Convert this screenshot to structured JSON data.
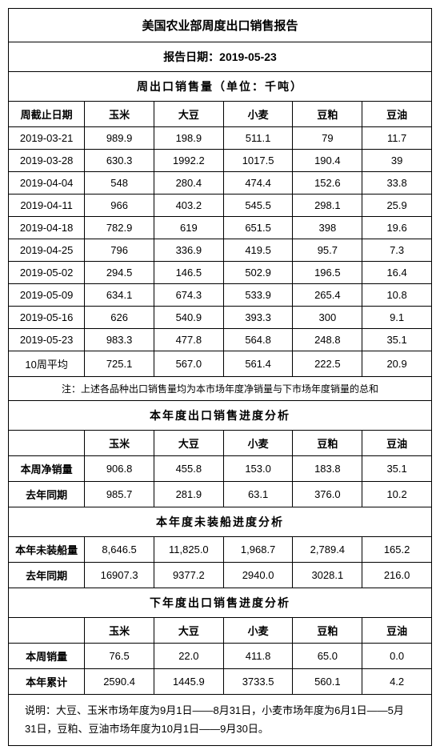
{
  "title": "美国农业部周度出口销售报告",
  "report_date_label": "报告日期：2019-05-23",
  "section_weekly": "周出口销售量（单位：千吨）",
  "headers": {
    "date": "周截止日期",
    "corn": "玉米",
    "soybean": "大豆",
    "wheat": "小麦",
    "soymeal": "豆粕",
    "soyoil": "豆油"
  },
  "weekly_rows": [
    {
      "date": "2019-03-21",
      "corn": "989.9",
      "soybean": "198.9",
      "wheat": "511.1",
      "soymeal": "79",
      "soyoil": "11.7"
    },
    {
      "date": "2019-03-28",
      "corn": "630.3",
      "soybean": "1992.2",
      "wheat": "1017.5",
      "soymeal": "190.4",
      "soyoil": "39"
    },
    {
      "date": "2019-04-04",
      "corn": "548",
      "soybean": "280.4",
      "wheat": "474.4",
      "soymeal": "152.6",
      "soyoil": "33.8"
    },
    {
      "date": "2019-04-11",
      "corn": "966",
      "soybean": "403.2",
      "wheat": "545.5",
      "soymeal": "298.1",
      "soyoil": "25.9"
    },
    {
      "date": "2019-04-18",
      "corn": "782.9",
      "soybean": "619",
      "wheat": "651.5",
      "soymeal": "398",
      "soyoil": "19.6"
    },
    {
      "date": "2019-04-25",
      "corn": "796",
      "soybean": "336.9",
      "wheat": "419.5",
      "soymeal": "95.7",
      "soyoil": "7.3"
    },
    {
      "date": "2019-05-02",
      "corn": "294.5",
      "soybean": "146.5",
      "wheat": "502.9",
      "soymeal": "196.5",
      "soyoil": "16.4"
    },
    {
      "date": "2019-05-09",
      "corn": "634.1",
      "soybean": "674.3",
      "wheat": "533.9",
      "soymeal": "265.4",
      "soyoil": "10.8"
    },
    {
      "date": "2019-05-16",
      "corn": "626",
      "soybean": "540.9",
      "wheat": "393.3",
      "soymeal": "300",
      "soyoil": "9.1"
    },
    {
      "date": "2019-05-23",
      "corn": "983.3",
      "soybean": "477.8",
      "wheat": "564.8",
      "soymeal": "248.8",
      "soyoil": "35.1"
    }
  ],
  "avg_row": {
    "date": "10周平均",
    "corn": "725.1",
    "soybean": "567.0",
    "wheat": "561.4",
    "soymeal": "222.5",
    "soyoil": "20.9"
  },
  "note1": "注：上述各品种出口销售量均为本市场年度净销量与下市场年度销量的总和",
  "section_current": "本年度出口销售进度分析",
  "current_rows": [
    {
      "label": "本周净销量",
      "corn": "906.8",
      "soybean": "455.8",
      "wheat": "153.0",
      "soymeal": "183.8",
      "soyoil": "35.1"
    },
    {
      "label": "去年同期",
      "corn": "985.7",
      "soybean": "281.9",
      "wheat": "63.1",
      "soymeal": "376.0",
      "soyoil": "10.2"
    }
  ],
  "section_unshipped": "本年度未装船进度分析",
  "unshipped_rows": [
    {
      "label": "本年未装船量",
      "corn": "8,646.5",
      "soybean": "11,825.0",
      "wheat": "1,968.7",
      "soymeal": "2,789.4",
      "soyoil": "165.2"
    },
    {
      "label": "去年同期",
      "corn": "16907.3",
      "soybean": "9377.2",
      "wheat": "2940.0",
      "soymeal": "3028.1",
      "soyoil": "216.0"
    }
  ],
  "section_next": "下年度出口销售进度分析",
  "next_rows": [
    {
      "label": "本周销量",
      "corn": "76.5",
      "soybean": "22.0",
      "wheat": "411.8",
      "soymeal": "65.0",
      "soyoil": "0.0"
    },
    {
      "label": "本年累计",
      "corn": "2590.4",
      "soybean": "1445.9",
      "wheat": "3733.5",
      "soymeal": "560.1",
      "soyoil": "4.2"
    }
  ],
  "explanation": "说明：大豆、玉米市场年度为9月1日——8月31日，小麦市场年度为6月1日——5月31日，豆粕、豆油市场年度为10月1日——9月30日。"
}
